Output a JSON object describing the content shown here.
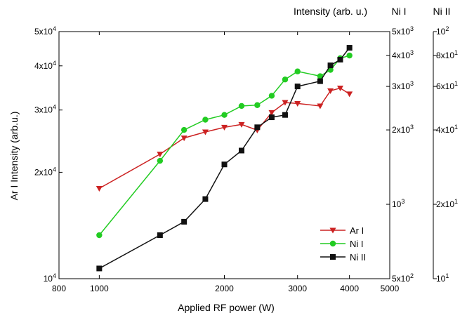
{
  "chart_data": {
    "type": "line",
    "xlabel": "Applied RF power (W)",
    "ylabel": "Ar I Intensity (arb.u.)",
    "right_axes_title": "Intensity (arb. u.)",
    "right_axis_1_title": "Ni I",
    "right_axis_2_title": "Ni II",
    "x_scale": "log",
    "xlim": [
      800,
      5000
    ],
    "x_ticks": [
      {
        "v": 800,
        "label": "800"
      },
      {
        "v": 1000,
        "label": "1000"
      },
      {
        "v": 2000,
        "label": "2000"
      },
      {
        "v": 3000,
        "label": "3000"
      },
      {
        "v": 4000,
        "label": "4000"
      },
      {
        "v": 5000,
        "label": "5000"
      }
    ],
    "y_left": {
      "scale": "log",
      "lim": [
        10000,
        50000
      ],
      "ticks": [
        {
          "v": 10000,
          "m": "10",
          "e": "4"
        },
        {
          "v": 20000,
          "m": "2x10",
          "e": "4"
        },
        {
          "v": 30000,
          "m": "3x10",
          "e": "4"
        },
        {
          "v": 40000,
          "m": "4x10",
          "e": "4"
        },
        {
          "v": 50000,
          "m": "5x10",
          "e": "4"
        }
      ]
    },
    "y_right_1": {
      "name": "Ni I",
      "scale": "log",
      "lim": [
        500,
        5000
      ],
      "ticks": [
        {
          "v": 500,
          "m": "5x10",
          "e": "2"
        },
        {
          "v": 1000,
          "m": "10",
          "e": "3"
        },
        {
          "v": 2000,
          "m": "2x10",
          "e": "3"
        },
        {
          "v": 3000,
          "m": "3x10",
          "e": "3"
        },
        {
          "v": 4000,
          "m": "4x10",
          "e": "3"
        },
        {
          "v": 5000,
          "m": "5x10",
          "e": "3"
        }
      ]
    },
    "y_right_2": {
      "name": "Ni II",
      "scale": "log",
      "lim": [
        10,
        100
      ],
      "ticks": [
        {
          "v": 10,
          "m": "10",
          "e": "1"
        },
        {
          "v": 20,
          "m": "2x10",
          "e": "1"
        },
        {
          "v": 40,
          "m": "4x10",
          "e": "1"
        },
        {
          "v": 60,
          "m": "6x10",
          "e": "1"
        },
        {
          "v": 80,
          "m": "8x10",
          "e": "1"
        },
        {
          "v": 100,
          "m": "10",
          "e": "2"
        }
      ]
    },
    "grid": false,
    "legend_position": "bottom-right",
    "series": [
      {
        "name": "Ar I",
        "axis": "left",
        "color": "#cc2222",
        "marker": "triangle-down",
        "x": [
          1000,
          1400,
          1600,
          1800,
          2000,
          2200,
          2400,
          2600,
          2800,
          3000,
          3400,
          3600,
          3800,
          4000
        ],
        "y": [
          18000,
          22500,
          25000,
          26000,
          26800,
          27300,
          26300,
          29500,
          31500,
          31300,
          30800,
          34000,
          34600,
          33300
        ]
      },
      {
        "name": "Ni I",
        "axis": "right1",
        "color": "#22cc22",
        "marker": "circle",
        "x": [
          1000,
          1400,
          1600,
          1800,
          2000,
          2200,
          2400,
          2600,
          2800,
          3000,
          3400,
          3600,
          3800,
          4000
        ],
        "y": [
          750,
          1500,
          2000,
          2200,
          2300,
          2500,
          2520,
          2750,
          3200,
          3450,
          3300,
          3500,
          3900,
          4000
        ]
      },
      {
        "name": "Ni II",
        "axis": "right2",
        "color": "#111111",
        "marker": "square",
        "x": [
          1000,
          1400,
          1600,
          1800,
          2000,
          2200,
          2400,
          2600,
          2800,
          3000,
          3400,
          3600,
          3800,
          4000
        ],
        "y": [
          11,
          15,
          17,
          21,
          29,
          33,
          41,
          45,
          46,
          60,
          63,
          73,
          77,
          86
        ]
      }
    ]
  }
}
